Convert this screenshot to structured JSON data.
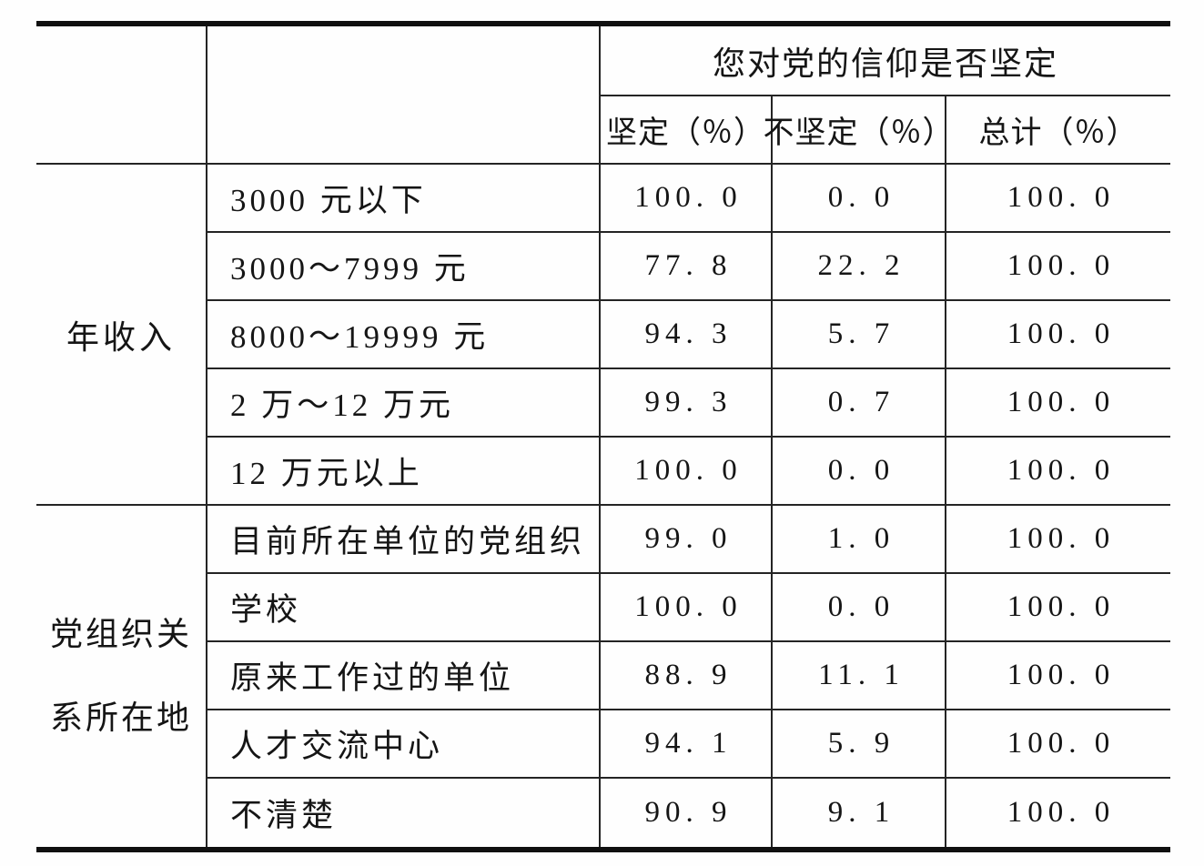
{
  "page": {
    "background": "#fefefe",
    "text_color": "#151515",
    "thick_rule_color": "#101010",
    "thin_rule_color": "#242424"
  },
  "table": {
    "span_header": "您对党的信仰是否坚定",
    "col_headers": [
      "坚定（％）",
      "不坚定（％）",
      "总计（％）"
    ],
    "sections": [
      {
        "group": "年收入",
        "rows": [
          {
            "label": "3000 元以下",
            "values": [
              "100. 0",
              "0. 0",
              "100. 0"
            ]
          },
          {
            "label": "3000～7999 元",
            "values": [
              "77. 8",
              "22. 2",
              "100. 0"
            ]
          },
          {
            "label": "8000～19999 元",
            "values": [
              "94. 3",
              "5. 7",
              "100. 0"
            ]
          },
          {
            "label": "2 万～12 万元",
            "values": [
              "99. 3",
              "0. 7",
              "100. 0"
            ]
          },
          {
            "label": "12 万元以上",
            "values": [
              "100. 0",
              "0. 0",
              "100. 0"
            ]
          }
        ]
      },
      {
        "group_lines": [
          "党组织关",
          "系所在地"
        ],
        "rows": [
          {
            "label": "目前所在单位的党组织",
            "values": [
              "99. 0",
              "1. 0",
              "100. 0"
            ]
          },
          {
            "label": "学校",
            "values": [
              "100. 0",
              "0. 0",
              "100. 0"
            ]
          },
          {
            "label": "原来工作过的单位",
            "values": [
              "88. 9",
              "11. 1",
              "100. 0"
            ]
          },
          {
            "label": "人才交流中心",
            "values": [
              "94. 1",
              "5. 9",
              "100. 0"
            ]
          },
          {
            "label": "不清楚",
            "values": [
              "90. 9",
              "9. 1",
              "100. 0"
            ]
          }
        ]
      }
    ]
  },
  "chart_data": {
    "type": "table",
    "title": "您对党的信仰是否坚定",
    "columns": [
      "坚定（％）",
      "不坚定（％）",
      "总计（％）"
    ],
    "row_groups": [
      {
        "group": "年收入",
        "categories": [
          "3000 元以下",
          "3000～7999 元",
          "8000～19999 元",
          "2 万～12 万元",
          "12 万元以上"
        ],
        "values": [
          [
            100.0,
            0.0,
            100.0
          ],
          [
            77.8,
            22.2,
            100.0
          ],
          [
            94.3,
            5.7,
            100.0
          ],
          [
            99.3,
            0.7,
            100.0
          ],
          [
            100.0,
            0.0,
            100.0
          ]
        ]
      },
      {
        "group": "党组织关系所在地",
        "categories": [
          "目前所在单位的党组织",
          "学校",
          "原来工作过的单位",
          "人才交流中心",
          "不清楚"
        ],
        "values": [
          [
            99.0,
            1.0,
            100.0
          ],
          [
            100.0,
            0.0,
            100.0
          ],
          [
            88.9,
            11.1,
            100.0
          ],
          [
            94.1,
            5.9,
            100.0
          ],
          [
            90.9,
            9.1,
            100.0
          ]
        ]
      }
    ]
  }
}
